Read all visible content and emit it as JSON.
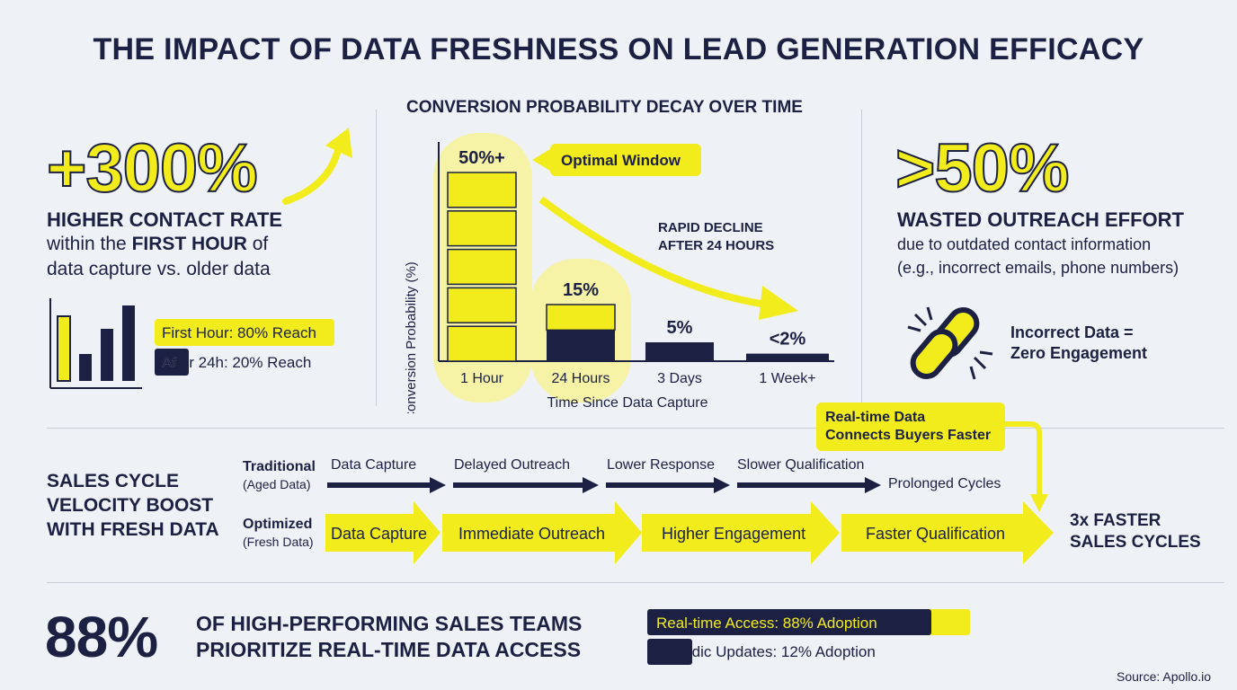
{
  "title": "THE IMPACT OF DATA FRESHNESS ON LEAD GENERATION EFFICACY",
  "contact_rate": {
    "value": "+300%",
    "heading": "HIGHER CONTACT RATE",
    "line1_pre": "within the ",
    "line1_bold": "FIRST HOUR",
    "line1_post": " of",
    "line2": "data capture vs. older data",
    "legend_first": "First Hour: 80% Reach",
    "legend_after": "After 24h: 20% Reach",
    "first_hour_reach": 80,
    "after_24h_reach": 20,
    "colors": {
      "yellow": "#f2ec1c",
      "navy": "#1c2143"
    }
  },
  "chart_data": {
    "type": "bar",
    "title": "CONVERSION PROBABILITY DECAY OVER TIME",
    "xlabel": "Time Since Data Capture",
    "ylabel": "Conversion Probability (%)",
    "categories": [
      "1 Hour",
      "24 Hours",
      "3 Days",
      "1 Week+"
    ],
    "values": [
      50,
      15,
      5,
      2
    ],
    "data_labels": [
      "50%+",
      "15%",
      "5%",
      "<2%"
    ],
    "callout": "Optimal Window",
    "annotation_line1": "RAPID DECLINE",
    "annotation_line2": "AFTER 24 HOURS",
    "ylim": [
      0,
      55
    ],
    "grid": false
  },
  "wasted": {
    "value": ">50%",
    "heading": "WASTED OUTREACH EFFORT",
    "line1": "due to outdated contact information",
    "line2": "(e.g., incorrect emails, phone numbers)",
    "icon": "broken-link-icon",
    "note_line1": "Incorrect Data =",
    "note_line2": "Zero Engagement"
  },
  "sales_cycle": {
    "title_line1": "SALES CYCLE",
    "title_line2": "VELOCITY BOOST",
    "title_line3": "WITH FRESH DATA",
    "traditional_label": "Traditional",
    "traditional_sub": "(Aged Data)",
    "traditional_steps": [
      "Data Capture",
      "Delayed Outreach",
      "Lower Response",
      "Slower Qualification"
    ],
    "traditional_end": "Prolonged Cycles",
    "optimized_label": "Optimized",
    "optimized_sub": "(Fresh Data)",
    "optimized_steps": [
      "Data Capture",
      "Immediate Outreach",
      "Higher Engagement",
      "Faster Qualification"
    ],
    "callout_line1": "Real-time Data",
    "callout_line2": "Connects Buyers Faster",
    "result_line1": "3x FASTER",
    "result_line2": "SALES CYCLES"
  },
  "adoption": {
    "value": "88%",
    "line1": "OF HIGH-PERFORMING SALES TEAMS",
    "line2": "PRIORITIZE REAL-TIME DATA ACCESS",
    "realtime_label": "Real-time Access: 88% Adoption",
    "periodic_label": "Periodic Updates: 12% Adoption",
    "realtime_pct": 88,
    "periodic_pct": 12
  },
  "source": "Source: Apollo.io"
}
